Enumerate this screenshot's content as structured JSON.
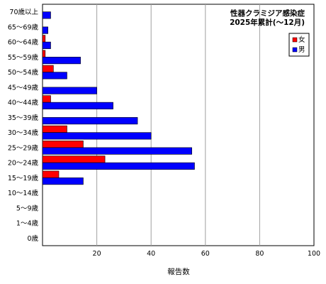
{
  "chart_data": {
    "type": "bar",
    "orientation": "horizontal",
    "title_lines": [
      "性器クラミジア感染症",
      "2025年累計(～12月)"
    ],
    "xlabel": "報告数",
    "ylabel": "",
    "xlim": [
      0,
      100
    ],
    "xticks": [
      "20",
      "40",
      "60",
      "80",
      "100"
    ],
    "grid": true,
    "legend_position": "top-right",
    "categories": [
      "70歳以上",
      "65～69歳",
      "60～64歳",
      "55～59歳",
      "50～54歳",
      "45～49歳",
      "40～44歳",
      "35～39歳",
      "30～34歳",
      "25～29歳",
      "20～24歳",
      "15～19歳",
      "10～14歳",
      "5～9歳",
      "1～4歳",
      "0歳"
    ],
    "series": [
      {
        "name": "女",
        "color": "#ff0000",
        "values": [
          0,
          0,
          1,
          1,
          4,
          0,
          3,
          0,
          9,
          15,
          23,
          6,
          0,
          0,
          0,
          0
        ]
      },
      {
        "name": "男",
        "color": "#0000ff",
        "values": [
          3,
          2,
          3,
          14,
          9,
          20,
          26,
          35,
          40,
          55,
          56,
          15,
          0,
          0,
          0,
          0
        ]
      }
    ]
  }
}
